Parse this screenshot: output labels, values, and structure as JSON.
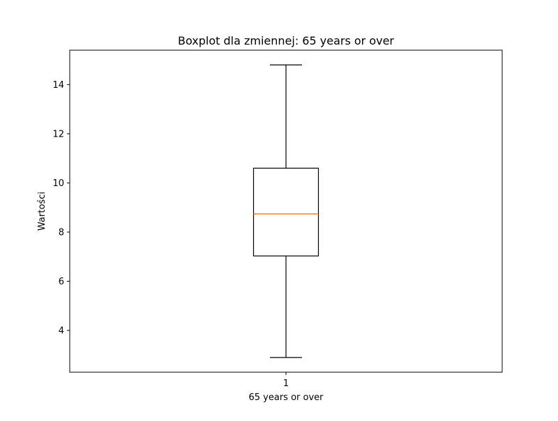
{
  "chart_data": {
    "type": "boxplot",
    "title": "Boxplot dla zmiennej: 65 years or over",
    "xlabel": "65 years or over",
    "ylabel": "Wartości",
    "categories": [
      "1"
    ],
    "ylim": [
      2.3,
      15.4
    ],
    "yticks": [
      4,
      6,
      8,
      10,
      12,
      14
    ],
    "ytick_labels": [
      "4",
      "6",
      "8",
      "10",
      "12",
      "14"
    ],
    "grid": false,
    "boxes": [
      {
        "category": "1",
        "whisker_low": 2.9,
        "q1": 7.03,
        "median": 8.74,
        "q3": 10.6,
        "whisker_high": 14.8
      }
    ],
    "colors": {
      "box": "#000000",
      "median": "#ff7f0e",
      "whisker": "#000000"
    }
  }
}
